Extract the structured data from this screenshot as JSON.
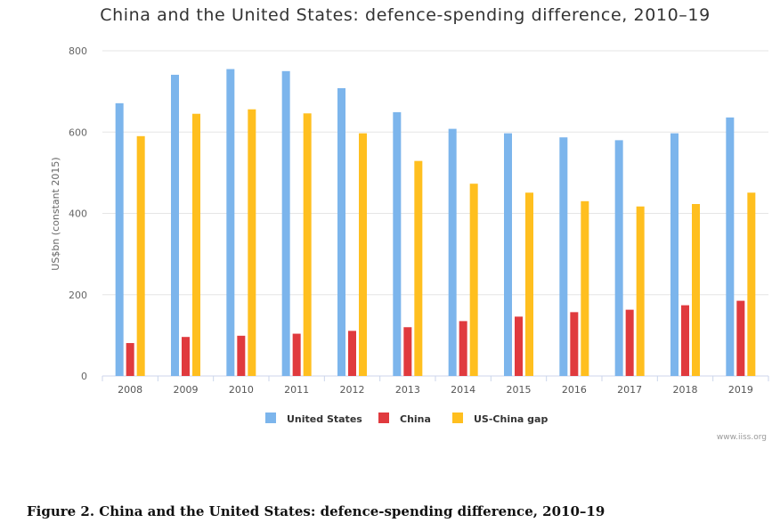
{
  "chart_data": {
    "type": "bar",
    "title": "China and the United States: defence-spending difference, 2010–19",
    "xlabel": "",
    "ylabel": "US$bn (constant 2015)",
    "ylim": [
      0,
      800
    ],
    "yticks": [
      0,
      200,
      400,
      600,
      800
    ],
    "grid": true,
    "legend_position": "bottom",
    "categories": [
      "2008",
      "2009",
      "2010",
      "2011",
      "2012",
      "2013",
      "2014",
      "2015",
      "2016",
      "2017",
      "2018",
      "2019"
    ],
    "series": [
      {
        "name": "United States",
        "color": "#7cb5ec",
        "values": [
          671,
          741,
          755,
          750,
          708,
          649,
          608,
          597,
          587,
          580,
          597,
          636
        ]
      },
      {
        "name": "China",
        "color": "#e03a3e",
        "values": [
          81,
          96,
          99,
          104,
          111,
          120,
          135,
          146,
          157,
          163,
          174,
          185
        ]
      },
      {
        "name": "US-China gap",
        "color": "#ffbf1f",
        "values": [
          590,
          645,
          656,
          646,
          597,
          529,
          473,
          451,
          430,
          417,
          423,
          451
        ]
      }
    ]
  },
  "credit": "www.iiss.org",
  "caption": "Figure 2. China and the United States: defence-spending difference, 2010–19"
}
